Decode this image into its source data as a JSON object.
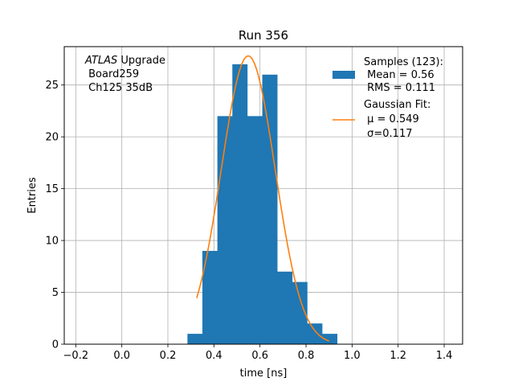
{
  "chart_data": {
    "type": "bar",
    "title": "Run 356",
    "xlabel": "time [ns]",
    "ylabel": "Entries",
    "xlim": [
      -0.25,
      1.48
    ],
    "ylim": [
      0,
      28.7
    ],
    "xticks": [
      -0.2,
      0.0,
      0.2,
      0.4,
      0.6,
      0.8,
      1.0,
      1.2,
      1.4
    ],
    "xtick_labels": [
      "−0.2",
      "0.0",
      "0.2",
      "0.4",
      "0.6",
      "0.8",
      "1.0",
      "1.2",
      "1.4"
    ],
    "yticks": [
      0,
      5,
      10,
      15,
      20,
      25
    ],
    "ytick_labels": [
      "0",
      "5",
      "10",
      "15",
      "20",
      "25"
    ],
    "grid": true,
    "histogram": {
      "name": "Samples",
      "color": "#1f77b4",
      "bin_edges": [
        0.285,
        0.35,
        0.415,
        0.48,
        0.545,
        0.61,
        0.675,
        0.74,
        0.805,
        0.87,
        0.935
      ],
      "counts": [
        1,
        9,
        22,
        27,
        22,
        26,
        7,
        6,
        2,
        1
      ]
    },
    "fit": {
      "name": "Gaussian Fit",
      "color": "#ff7f0e",
      "mu": 0.549,
      "sigma": 0.117,
      "amplitude": 27.8,
      "x_range": [
        0.325,
        0.9
      ]
    },
    "annotation": {
      "line1_italic": "ATLAS",
      "line1_rest": " Upgrade",
      "line2": " Board259",
      "line3": " Ch125 35dB"
    },
    "legend": {
      "position": "upper right",
      "entries": [
        {
          "kind": "patch",
          "color": "#1f77b4",
          "lines": [
            "Samples (123):",
            " Mean = 0.56",
            " RMS = 0.111"
          ]
        },
        {
          "kind": "line",
          "color": "#ff7f0e",
          "lines": [
            "Gaussian Fit:",
            " μ = 0.549",
            " σ=0.117"
          ]
        }
      ]
    }
  }
}
